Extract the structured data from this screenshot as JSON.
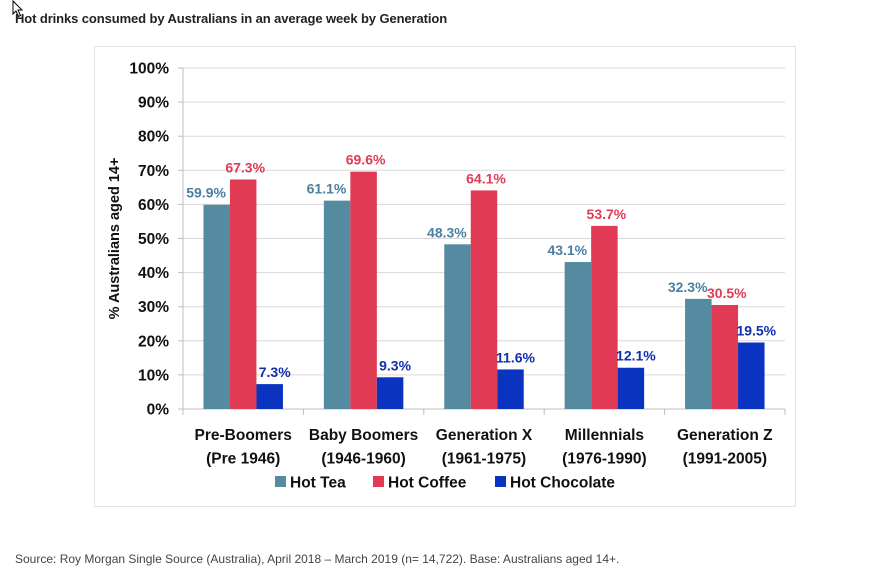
{
  "page": {
    "title": "Hot drinks consumed by Australians in an average week by Generation",
    "source": "Source: Roy Morgan Single Source (Australia), April 2018 – March 2019 (n= 14,722). Base: Australians aged 14+."
  },
  "chart_data": {
    "type": "bar",
    "title": "Hot drinks consumed by Australians in an average week by Generation",
    "xlabel": "",
    "ylabel": "% Australians aged 14+",
    "ylim": [
      0,
      100
    ],
    "yticks": [
      "0%",
      "10%",
      "20%",
      "30%",
      "40%",
      "50%",
      "60%",
      "70%",
      "80%",
      "90%",
      "100%"
    ],
    "grid": true,
    "legend": "bottom",
    "categories": [
      [
        "Pre-Boomers",
        "(Pre 1946)"
      ],
      [
        "Baby Boomers",
        "(1946-1960)"
      ],
      [
        "Generation X",
        "(1961-1975)"
      ],
      [
        "Millennials",
        "(1976-1990)"
      ],
      [
        "Generation Z",
        "(1991-2005)"
      ]
    ],
    "series": [
      {
        "name": "Hot Tea",
        "color": "#558ba0",
        "label_color": "#4b80a0",
        "values": [
          59.9,
          61.1,
          48.3,
          43.1,
          32.3
        ],
        "labels": [
          "59.9%",
          "61.1%",
          "48.3%",
          "43.1%",
          "32.3%"
        ]
      },
      {
        "name": "Hot Coffee",
        "color": "#e03a54",
        "label_color": "#e03a54",
        "values": [
          67.3,
          69.6,
          64.1,
          53.7,
          30.5
        ],
        "labels": [
          "67.3%",
          "69.6%",
          "64.1%",
          "53.7%",
          "30.5%"
        ]
      },
      {
        "name": "Hot Chocolate",
        "color": "#0a33c0",
        "label_color": "#0f2fae",
        "values": [
          7.3,
          9.3,
          11.6,
          12.1,
          19.5
        ],
        "labels": [
          "7.3%",
          "9.3%",
          "11.6%",
          "12.1%",
          "19.5%"
        ]
      }
    ]
  }
}
